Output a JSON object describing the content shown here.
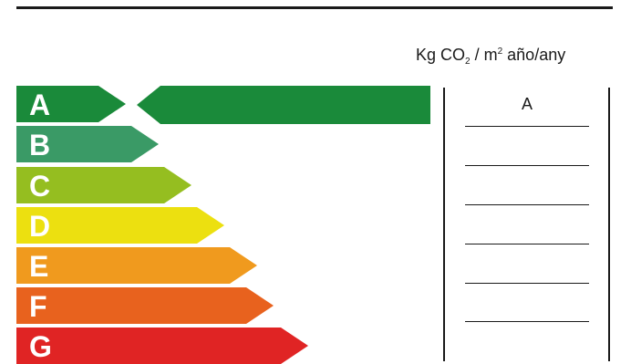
{
  "header": {
    "unit_prefix": "Kg CO",
    "unit_sub": "2",
    "unit_mid": " / m",
    "unit_sup": "2",
    "unit_suffix": " año/any"
  },
  "scale": {
    "classes": [
      {
        "letter": "A",
        "color": "#1a8a3a"
      },
      {
        "letter": "B",
        "color": "#3a9a66"
      },
      {
        "letter": "C",
        "color": "#95be20"
      },
      {
        "letter": "D",
        "color": "#ece010"
      },
      {
        "letter": "E",
        "color": "#f09a1e"
      },
      {
        "letter": "F",
        "color": "#e8621e"
      },
      {
        "letter": "G",
        "color": "#e02424"
      }
    ],
    "selected_class": "A",
    "marker_color": "#1a8a3a"
  },
  "rating_table": {
    "value": "A"
  }
}
